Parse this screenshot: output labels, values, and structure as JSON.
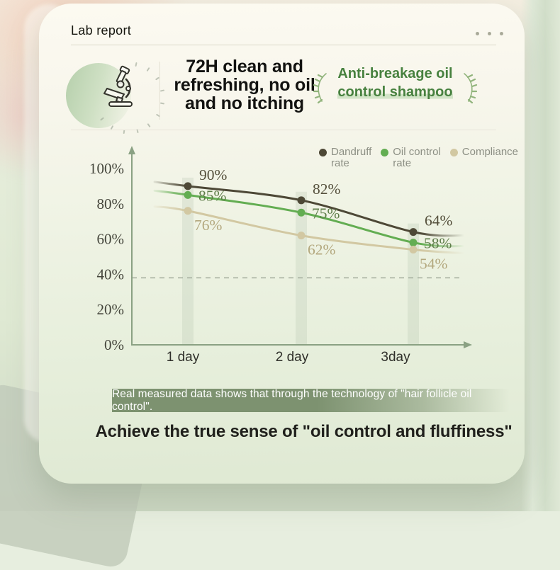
{
  "window": {
    "title": "Lab report",
    "menu_icon": "ellipsis-dots"
  },
  "header": {
    "icon": "microscope-icon",
    "title_lines": [
      "72H clean and",
      "refreshing, no oil",
      "and no itching"
    ],
    "badge_lines": [
      "Anti-breakage oil",
      "control shampoo"
    ],
    "badge_decoration_icon": "laurel-branch-icon",
    "badge_text_color": "#47813f"
  },
  "chart_data": {
    "type": "line",
    "categories": [
      "1 day",
      "2 day",
      "3day"
    ],
    "series": [
      {
        "name": "Dandruff rate",
        "legend_lines": [
          "Dandruff",
          "rate"
        ],
        "values": [
          90,
          82,
          64
        ],
        "line_color": "#4d4836",
        "label_color": "#55503c"
      },
      {
        "name": "Oil control rate",
        "legend_lines": [
          "Oil control",
          "rate"
        ],
        "values": [
          85,
          75,
          58
        ],
        "line_color": "#63ad52",
        "label_color": "#5e7d49"
      },
      {
        "name": "Compliance",
        "legend_lines": [
          "Compliance"
        ],
        "values": [
          76,
          62,
          54
        ],
        "line_color": "#d2c8a2",
        "label_color": "#b3a87e"
      }
    ],
    "value_suffix": "%",
    "ylim": [
      0,
      100
    ],
    "ytick_labels": [
      "100%",
      "80%",
      "60%",
      "40%",
      "20%",
      "0%"
    ],
    "ytick_values": [
      100,
      80,
      60,
      40,
      20,
      0
    ],
    "reference_line_value": 38,
    "grid": false,
    "legend_position": "top-right",
    "axis_color": "#8aa183",
    "reference_line_color": "#a3ac9b"
  },
  "caption": {
    "text": "Real measured data shows that through the technology of \"hair follicle oil control\"."
  },
  "footer": {
    "headline": "Achieve the true sense of \"oil control and fluffiness\""
  }
}
